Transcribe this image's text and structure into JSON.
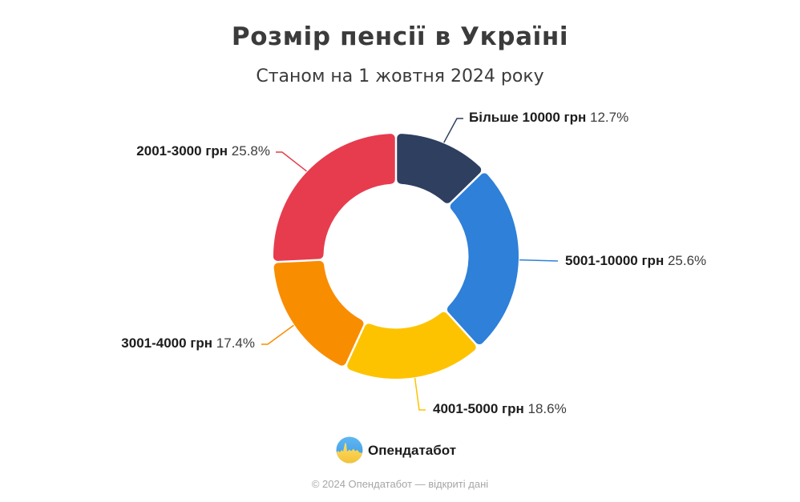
{
  "title": "Розмір пенсії в Україні",
  "subtitle": "Станом на 1 жовтня 2024 року",
  "chart_data": {
    "type": "pie",
    "donut": true,
    "title": "Розмір пенсії в Україні",
    "subtitle": "Станом на 1 жовтня 2024 року",
    "start_angle_deg": 0,
    "direction": "clockwise",
    "unit": "%",
    "segments": [
      {
        "label": "Більше 10000 грн",
        "value": 12.7,
        "pct_label": "12.7%",
        "color": "#2e3f60"
      },
      {
        "label": "5001-10000 грн",
        "value": 25.6,
        "pct_label": "25.6%",
        "color": "#2e80d9"
      },
      {
        "label": "4001-5000 грн",
        "value": 18.6,
        "pct_label": "18.6%",
        "color": "#fdc300"
      },
      {
        "label": "3001-4000 грн",
        "value": 17.4,
        "pct_label": "17.4%",
        "color": "#f98d00"
      },
      {
        "label": "2001-3000 грн",
        "value": 25.8,
        "pct_label": "25.8%",
        "color": "#e73c4e"
      }
    ]
  },
  "footer": {
    "brand": "Опендатабот",
    "copyright": "© 2024 Опендатабот — відкриті дані"
  }
}
